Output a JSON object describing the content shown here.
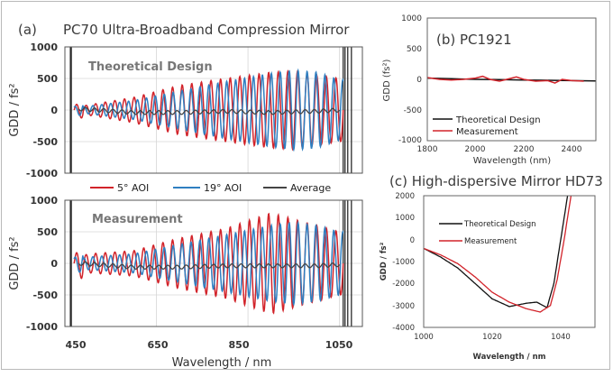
{
  "chart_data": [
    {
      "id": "a-theory",
      "type": "line",
      "panel_label": "(a)",
      "title": "PC70 Ultra-Broadband Compression Mirror",
      "inner_title": "Theoretical Design",
      "ylabel": "GDD / fs²",
      "xlim": [
        450,
        1100
      ],
      "ylim": [
        -1000,
        1000
      ],
      "yticks": [
        "1000",
        "500",
        "0",
        "-500",
        "-1000"
      ],
      "grid": true,
      "legend": "below",
      "legend_entries": [
        "5° AOI",
        "19° AOI",
        "Average"
      ],
      "series": [
        {
          "name": "5° AOI",
          "color": "#d2232a",
          "oscillation_period_nm": 21,
          "envelope_x": [
            450,
            500,
            600,
            700,
            800,
            900,
            950,
            1000,
            1050
          ],
          "envelope_amplitude": [
            0,
            80,
            200,
            390,
            500,
            600,
            620,
            550,
            500
          ]
        },
        {
          "name": "19° AOI",
          "color": "#2f7fc1",
          "oscillation_period_nm": 19.5,
          "envelope_x": [
            450,
            500,
            600,
            700,
            800,
            900,
            950,
            1000,
            1050
          ],
          "envelope_amplitude": [
            0,
            60,
            150,
            300,
            450,
            580,
            630,
            600,
            480
          ]
        },
        {
          "name": "Average",
          "color": "#444444",
          "x": [
            480,
            520,
            600,
            700,
            800,
            900,
            1000,
            1050
          ],
          "y": [
            20,
            0,
            -40,
            -40,
            -20,
            -40,
            -20,
            0
          ]
        }
      ]
    },
    {
      "id": "a-measurement",
      "type": "line",
      "inner_title": "Measurement",
      "xlabel": "Wavelength / nm",
      "ylabel": "GDD / fs²",
      "xlim": [
        450,
        1100
      ],
      "ylim": [
        -1000,
        1000
      ],
      "xticks": [
        "450",
        "650",
        "850",
        "1050"
      ],
      "yticks": [
        "1000",
        "500",
        "0",
        "-500",
        "-1000"
      ],
      "grid": true,
      "series": [
        {
          "name": "5° AOI",
          "color": "#d2232a",
          "oscillation_period_nm": 21,
          "envelope_x": [
            450,
            500,
            600,
            700,
            800,
            900,
            950,
            1000,
            1050
          ],
          "envelope_amplitude": [
            0,
            150,
            200,
            400,
            550,
            800,
            700,
            600,
            500
          ]
        },
        {
          "name": "19° AOI",
          "color": "#2f7fc1",
          "oscillation_period_nm": 19.5,
          "envelope_x": [
            450,
            500,
            600,
            700,
            800,
            900,
            950,
            1000,
            1050
          ],
          "envelope_amplitude": [
            0,
            100,
            150,
            300,
            450,
            600,
            650,
            600,
            500
          ]
        },
        {
          "name": "Average",
          "color": "#444444",
          "x": [
            480,
            520,
            600,
            700,
            800,
            900,
            1000,
            1050
          ],
          "y": [
            0,
            -20,
            -60,
            -60,
            -40,
            -40,
            -40,
            -20
          ]
        }
      ]
    },
    {
      "id": "b",
      "type": "line",
      "title": "(b) PC1921",
      "xlabel": "Wavelength (nm)",
      "ylabel": "GDD (fs²)",
      "xlim": [
        1800,
        2500
      ],
      "ylim": [
        -1000,
        1000
      ],
      "xticks": [
        "1800",
        "2000",
        "2200",
        "2400"
      ],
      "yticks": [
        "1000",
        "500",
        "0",
        "-500",
        "-1000"
      ],
      "legend": "bottom-left",
      "series": [
        {
          "name": "Theoretical Design",
          "color": "#111111",
          "x": [
            1800,
            1900,
            2000,
            2100,
            2200,
            2300,
            2400,
            2500
          ],
          "y": [
            20,
            10,
            0,
            -5,
            -10,
            -15,
            -20,
            -25
          ]
        },
        {
          "name": "Measurement",
          "color": "#d2232a",
          "x": [
            1800,
            1850,
            1900,
            1950,
            2000,
            2030,
            2060,
            2100,
            2150,
            2170,
            2200,
            2250,
            2300,
            2330,
            2360,
            2400,
            2450
          ],
          "y": [
            30,
            0,
            -10,
            0,
            20,
            50,
            0,
            -30,
            20,
            40,
            0,
            -30,
            -20,
            -60,
            0,
            -20,
            -30
          ]
        }
      ]
    },
    {
      "id": "c",
      "type": "line",
      "title": "(c) High-dispersive Mirror HD73",
      "xlabel": "Wavelength / nm",
      "ylabel": "GDD / fs²",
      "xlim": [
        1000,
        1050
      ],
      "ylim": [
        -4000,
        2000
      ],
      "xticks": [
        "1000",
        "1020",
        "1040"
      ],
      "yticks": [
        "2000",
        "1000",
        "0",
        "-1000",
        "-2000",
        "-3000",
        "-4000"
      ],
      "legend": "top-left",
      "series": [
        {
          "name": "Theoretical Design",
          "color": "#111111",
          "x": [
            1000,
            1005,
            1010,
            1015,
            1020,
            1025,
            1030,
            1033,
            1036,
            1038,
            1040,
            1042
          ],
          "y": [
            -400,
            -800,
            -1300,
            -2000,
            -2700,
            -3050,
            -2900,
            -2850,
            -3100,
            -2000,
            0,
            2000
          ]
        },
        {
          "name": "Measurement",
          "color": "#d2232a",
          "x": [
            1000,
            1005,
            1010,
            1015,
            1020,
            1025,
            1030,
            1034,
            1037,
            1039,
            1041,
            1043
          ],
          "y": [
            -400,
            -700,
            -1100,
            -1700,
            -2400,
            -2850,
            -3150,
            -3300,
            -3000,
            -1800,
            0,
            2000
          ]
        }
      ]
    }
  ]
}
